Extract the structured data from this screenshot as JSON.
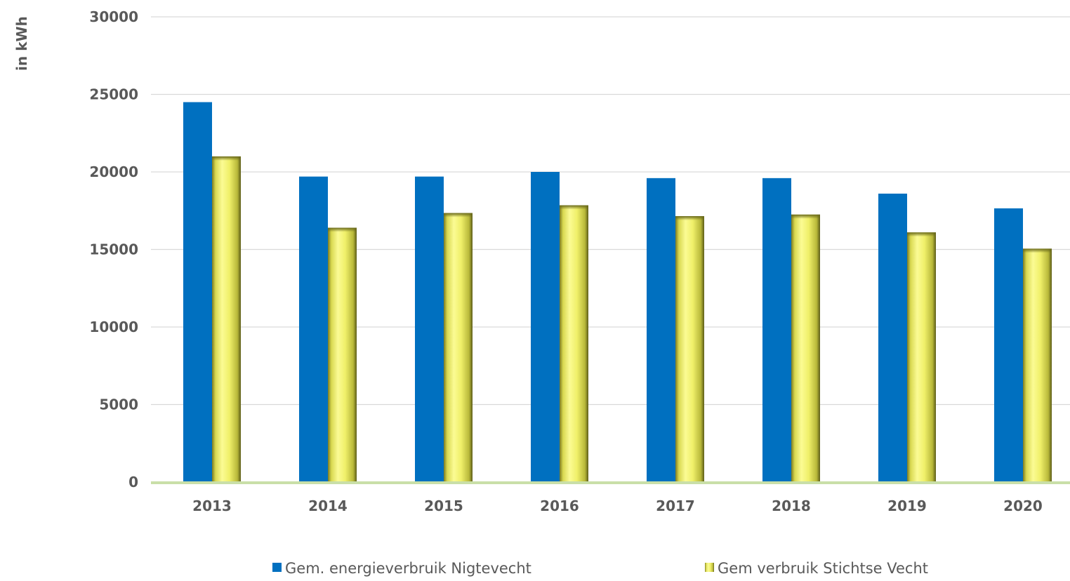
{
  "chart_data": {
    "type": "bar",
    "title": "",
    "xlabel": "",
    "ylabel": "in kWh",
    "categories": [
      "2013",
      "2014",
      "2015",
      "2016",
      "2017",
      "2018",
      "2019",
      "2020"
    ],
    "yticks": [
      "0",
      "5000",
      "10000",
      "15000",
      "20000",
      "25000",
      "30000"
    ],
    "ylim": [
      0,
      30000
    ],
    "grid": true,
    "legend_position": "bottom",
    "series": [
      {
        "name": "Gem. energieverbruik Nigtevecht",
        "values": [
          24500,
          19700,
          19700,
          20000,
          19600,
          19600,
          18600,
          17650
        ],
        "color": "#0070c0"
      },
      {
        "name": "Gem verbruik Stichtse Vecht",
        "values": [
          21000,
          16400,
          17350,
          17850,
          17150,
          17250,
          16100,
          15050
        ],
        "color": "#f5f57a"
      }
    ]
  }
}
